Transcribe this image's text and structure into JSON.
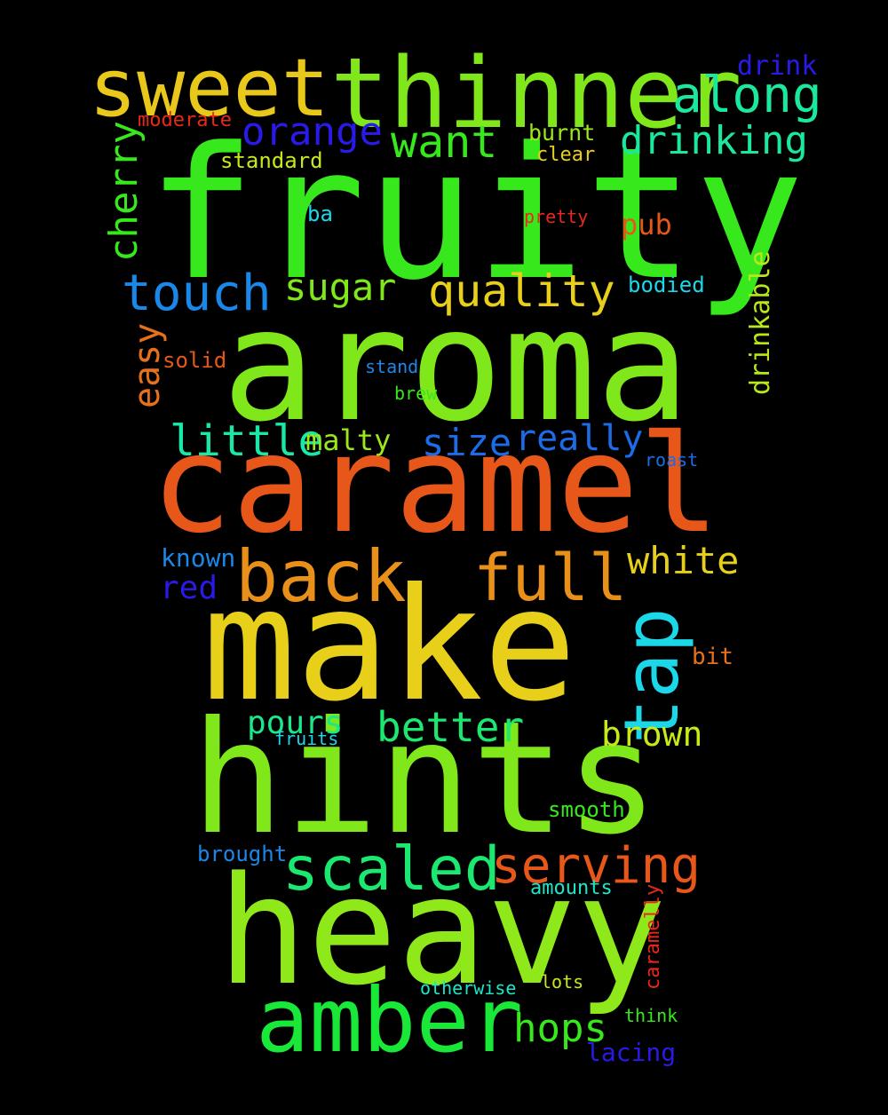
{
  "words": [
    {
      "text": "fruity",
      "color": "#36e81c"
    },
    {
      "text": "aroma",
      "color": "#80e81a"
    },
    {
      "text": "caramel",
      "color": "#e8571a"
    },
    {
      "text": "make",
      "color": "#e8d01a"
    },
    {
      "text": "hints",
      "color": "#80e81a"
    },
    {
      "text": "heavy",
      "color": "#8fe81a"
    },
    {
      "text": "amber",
      "color": "#1ae838"
    },
    {
      "text": "thinner",
      "color": "#80e81a"
    },
    {
      "text": "sweet",
      "color": "#e8c81a"
    },
    {
      "text": "along",
      "color": "#1ae89c"
    },
    {
      "text": "drink",
      "color": "#2a1ae8"
    },
    {
      "text": "moderate",
      "color": "#e8281a"
    },
    {
      "text": "orange",
      "color": "#2a1ae8"
    },
    {
      "text": "want",
      "color": "#36e81c"
    },
    {
      "text": "burnt",
      "color": "#9ce81a"
    },
    {
      "text": "drinking",
      "color": "#1ae89c"
    },
    {
      "text": "clear",
      "color": "#e8d01a"
    },
    {
      "text": "standard",
      "color": "#c8e81a"
    },
    {
      "text": "cherry",
      "color": "#36e81c"
    },
    {
      "text": "ba",
      "color": "#1ad8e8"
    },
    {
      "text": "pretty",
      "color": "#e8281a"
    },
    {
      "text": "pub",
      "color": "#e8571a"
    },
    {
      "text": "touch",
      "color": "#1a88e8"
    },
    {
      "text": "sugar",
      "color": "#80e81a"
    },
    {
      "text": "quality",
      "color": "#e8d01a"
    },
    {
      "text": "bodied",
      "color": "#1ad8e8"
    },
    {
      "text": "drinkable",
      "color": "#b8e81a"
    },
    {
      "text": "easy",
      "color": "#e8701a"
    },
    {
      "text": "solid",
      "color": "#e8571a"
    },
    {
      "text": "stand",
      "color": "#1a88e8"
    },
    {
      "text": "brew",
      "color": "#36e81c"
    },
    {
      "text": "little",
      "color": "#1ae8a8"
    },
    {
      "text": "malty",
      "color": "#9ce81a"
    },
    {
      "text": "size",
      "color": "#1a6ce8"
    },
    {
      "text": "really",
      "color": "#1a6ce8"
    },
    {
      "text": "roast",
      "color": "#1a6ce8"
    },
    {
      "text": "back",
      "color": "#e8901a"
    },
    {
      "text": "full",
      "color": "#e8901a"
    },
    {
      "text": "white",
      "color": "#e8d01a"
    },
    {
      "text": "known",
      "color": "#1a88e8"
    },
    {
      "text": "red",
      "color": "#2a1ae8"
    },
    {
      "text": "tap",
      "color": "#1ad8e8"
    },
    {
      "text": "bit",
      "color": "#e8701a"
    },
    {
      "text": "pours",
      "color": "#1ae88a"
    },
    {
      "text": "better",
      "color": "#1ae870"
    },
    {
      "text": "fruits",
      "color": "#1ad8e8"
    },
    {
      "text": "brown",
      "color": "#c8e81a"
    },
    {
      "text": "smooth",
      "color": "#36e81c"
    },
    {
      "text": "scaled",
      "color": "#1ae870"
    },
    {
      "text": "serving",
      "color": "#e8571a"
    },
    {
      "text": "brought",
      "color": "#1a88e8"
    },
    {
      "text": "amounts",
      "color": "#1ae8c8"
    },
    {
      "text": "caramelly",
      "color": "#e8281a"
    },
    {
      "text": "otherwise",
      "color": "#1ae8c8"
    },
    {
      "text": "lots",
      "color": "#c8e81a"
    },
    {
      "text": "hops",
      "color": "#36e81c"
    },
    {
      "text": "think",
      "color": "#36e81c"
    },
    {
      "text": "lacing",
      "color": "#2a1ae8"
    }
  ]
}
